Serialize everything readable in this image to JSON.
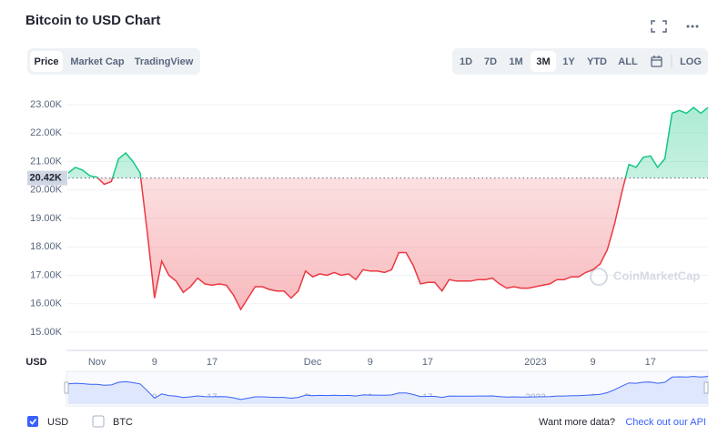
{
  "chart_data": {
    "type": "line",
    "title": "Bitcoin to USD Chart",
    "axis_label": "USD",
    "watermark": "CoinMarketCap",
    "categories": [
      null,
      null,
      null,
      null,
      "Nov",
      null,
      null,
      null,
      null,
      null,
      null,
      null,
      "9",
      null,
      null,
      null,
      null,
      null,
      null,
      null,
      "17",
      null,
      null,
      null,
      null,
      null,
      null,
      null,
      null,
      null,
      null,
      null,
      null,
      null,
      "Dec",
      null,
      null,
      null,
      null,
      null,
      null,
      null,
      "9",
      null,
      null,
      null,
      null,
      null,
      null,
      null,
      "17",
      null,
      null,
      null,
      null,
      null,
      null,
      null,
      null,
      null,
      null,
      null,
      null,
      null,
      null,
      "2023",
      null,
      null,
      null,
      null,
      null,
      null,
      null,
      "9",
      null,
      null,
      null,
      null,
      null,
      null,
      null,
      "17",
      null,
      null,
      null,
      null,
      null,
      null,
      null,
      null
    ],
    "series": [
      {
        "color": "#16c784",
        "color_below": "#ea3943",
        "values": [
          20600,
          20800,
          20700,
          20500,
          20450,
          20200,
          20300,
          21100,
          21300,
          21000,
          20600,
          18500,
          16200,
          17500,
          17000,
          16800,
          16400,
          16600,
          16900,
          16700,
          16650,
          16700,
          16650,
          16300,
          15800,
          16200,
          16600,
          16600,
          16500,
          16450,
          16450,
          16200,
          16450,
          17150,
          16950,
          17050,
          17000,
          17100,
          17000,
          17050,
          16850,
          17200,
          17150,
          17150,
          17100,
          17200,
          17800,
          17800,
          17350,
          16700,
          16750,
          16750,
          16450,
          16850,
          16800,
          16800,
          16800,
          16850,
          16850,
          16900,
          16700,
          16550,
          16600,
          16550,
          16550,
          16600,
          16650,
          16700,
          16850,
          16850,
          16950,
          16950,
          17100,
          17200,
          17400,
          17900,
          18800,
          19900,
          20900,
          20800,
          21150,
          21200,
          20800,
          21100,
          22700,
          22800,
          22700,
          22900,
          22700,
          22900
        ]
      }
    ],
    "baseline": {
      "value": 20420,
      "label": "20.42K"
    },
    "ylim": [
      14360,
      23640
    ],
    "yticks": [
      {
        "value": 15000,
        "label": "15.00K"
      },
      {
        "value": 16000,
        "label": "16.00K"
      },
      {
        "value": 17000,
        "label": "17.00K"
      },
      {
        "value": 18000,
        "label": "18.00K"
      },
      {
        "value": 19000,
        "label": "19.00K"
      },
      {
        "value": 20000,
        "label": "20.00K"
      },
      {
        "value": 21000,
        "label": "21.00K"
      },
      {
        "value": 22000,
        "label": "22.00K"
      },
      {
        "value": 23000,
        "label": "23.00K"
      }
    ],
    "grid": true
  },
  "ui": {
    "tabs": [
      "Price",
      "Market Cap",
      "TradingView"
    ],
    "ranges": [
      "1D",
      "7D",
      "1M",
      "3M",
      "1Y",
      "YTD",
      "ALL"
    ],
    "log": "LOG",
    "checkboxes": [
      "USD",
      "BTC"
    ],
    "footer_text": "Want more data?",
    "footer_link": "Check out our API"
  }
}
